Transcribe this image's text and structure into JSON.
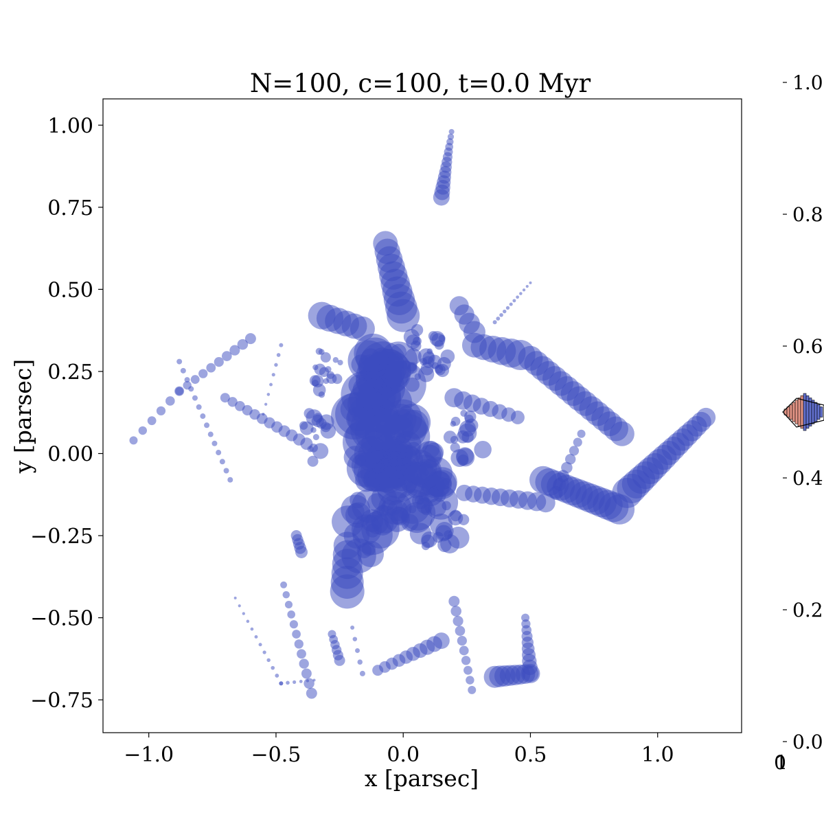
{
  "chart_data": {
    "type": "scatter",
    "title": "N=100, c=100, t=0.0 Myr",
    "xlabel": "x [parsec]",
    "ylabel": "y [parsec]",
    "xlim": [
      -1.18,
      1.33
    ],
    "ylim": [
      -0.85,
      1.08
    ],
    "x_ticks": [
      "−1.0",
      "−0.5",
      "0.0",
      "0.5",
      "1.0"
    ],
    "x_tick_values": [
      -1.0,
      -0.5,
      0.0,
      0.5,
      1.0
    ],
    "y_ticks": [
      "−0.75",
      "−0.50",
      "−0.25",
      "0.00",
      "0.25",
      "0.50",
      "0.75",
      "1.00"
    ],
    "y_tick_values": [
      -0.75,
      -0.5,
      -0.25,
      0.0,
      0.25,
      0.5,
      0.75,
      1.0
    ],
    "grid": false,
    "marker_color": "#3b4cc0",
    "marker_alpha": 0.5,
    "streams": [
      {
        "from": [
          0.19,
          0.98
        ],
        "to": [
          0.15,
          0.78
        ],
        "s0": 4,
        "s1": 12,
        "n": 14
      },
      {
        "from": [
          -0.07,
          0.64
        ],
        "to": [
          0.0,
          0.42
        ],
        "s0": 18,
        "s1": 24,
        "n": 10
      },
      {
        "from": [
          0.5,
          0.52
        ],
        "to": [
          0.36,
          0.4
        ],
        "s0": 2,
        "s1": 3,
        "n": 12
      },
      {
        "from": [
          0.5,
          0.29
        ],
        "to": [
          0.86,
          0.06
        ],
        "s0": 18,
        "s1": 18,
        "n": 16
      },
      {
        "from": [
          1.19,
          0.11
        ],
        "to": [
          0.88,
          -0.12
        ],
        "s0": 14,
        "s1": 22,
        "n": 18
      },
      {
        "from": [
          0.85,
          -0.17
        ],
        "to": [
          0.55,
          -0.08
        ],
        "s0": 22,
        "s1": 20,
        "n": 14
      },
      {
        "from": [
          0.48,
          -0.5
        ],
        "to": [
          0.5,
          -0.67
        ],
        "s0": 6,
        "s1": 12,
        "n": 10
      },
      {
        "from": [
          0.5,
          -0.67
        ],
        "to": [
          0.36,
          -0.68
        ],
        "s0": 14,
        "s1": 16,
        "n": 8
      },
      {
        "from": [
          -0.1,
          -0.66
        ],
        "to": [
          0.15,
          -0.57
        ],
        "s0": 8,
        "s1": 12,
        "n": 10
      },
      {
        "from": [
          -0.22,
          -0.42
        ],
        "to": [
          -0.22,
          -0.28
        ],
        "s0": 25,
        "s1": 20,
        "n": 6
      },
      {
        "from": [
          -0.88,
          0.28
        ],
        "to": [
          -0.68,
          -0.08
        ],
        "s0": 4,
        "s1": 4,
        "n": 14
      },
      {
        "from": [
          -1.06,
          0.04
        ],
        "to": [
          -0.88,
          0.19
        ],
        "s0": 6,
        "s1": 7,
        "n": 6
      },
      {
        "from": [
          -0.88,
          0.19
        ],
        "to": [
          -0.6,
          0.35
        ],
        "s0": 6,
        "s1": 8,
        "n": 10
      },
      {
        "from": [
          -0.7,
          0.17
        ],
        "to": [
          -0.38,
          0.03
        ],
        "s0": 7,
        "s1": 9,
        "n": 12
      },
      {
        "from": [
          -0.48,
          0.33
        ],
        "to": [
          -0.55,
          0.12
        ],
        "s0": 3,
        "s1": 2,
        "n": 8
      },
      {
        "from": [
          -0.66,
          -0.44
        ],
        "to": [
          -0.48,
          -0.7
        ],
        "s0": 2,
        "s1": 3,
        "n": 12
      },
      {
        "from": [
          -0.48,
          -0.7
        ],
        "to": [
          -0.35,
          -0.69
        ],
        "s0": 3,
        "s1": 2,
        "n": 6
      },
      {
        "from": [
          -0.47,
          -0.4
        ],
        "to": [
          -0.36,
          -0.73
        ],
        "s0": 5,
        "s1": 8,
        "n": 12
      },
      {
        "from": [
          -0.42,
          -0.25
        ],
        "to": [
          -0.4,
          -0.3
        ],
        "s0": 8,
        "s1": 9,
        "n": 5
      },
      {
        "from": [
          -0.32,
          0.42
        ],
        "to": [
          -0.16,
          0.38
        ],
        "s0": 20,
        "s1": 18,
        "n": 6
      },
      {
        "from": [
          0.22,
          0.45
        ],
        "to": [
          0.28,
          0.37
        ],
        "s0": 14,
        "s1": 16,
        "n": 4
      },
      {
        "from": [
          0.28,
          0.33
        ],
        "to": [
          0.46,
          0.3
        ],
        "s0": 18,
        "s1": 22,
        "n": 6
      },
      {
        "from": [
          0.24,
          -0.12
        ],
        "to": [
          0.56,
          -0.15
        ],
        "s0": 12,
        "s1": 14,
        "n": 10
      },
      {
        "from": [
          0.2,
          0.17
        ],
        "to": [
          0.45,
          0.11
        ],
        "s0": 14,
        "s1": 10,
        "n": 8
      },
      {
        "from": [
          0.7,
          0.06
        ],
        "to": [
          0.6,
          -0.12
        ],
        "s0": 6,
        "s1": 10,
        "n": 8
      },
      {
        "from": [
          -0.28,
          -0.55
        ],
        "to": [
          -0.25,
          -0.63
        ],
        "s0": 6,
        "s1": 8,
        "n": 6
      },
      {
        "from": [
          0.2,
          -0.45
        ],
        "to": [
          0.27,
          -0.72
        ],
        "s0": 8,
        "s1": 6,
        "n": 10
      },
      {
        "from": [
          -0.2,
          -0.53
        ],
        "to": [
          -0.16,
          -0.67
        ],
        "s0": 3,
        "s1": 4,
        "n": 5
      }
    ],
    "blobs": [
      {
        "center": [
          -0.08,
          0.1
        ],
        "rx": 0.14,
        "ry": 0.22,
        "n": 90,
        "smin": 8,
        "smax": 36
      },
      {
        "center": [
          0.02,
          -0.08
        ],
        "rx": 0.15,
        "ry": 0.14,
        "n": 60,
        "smin": 5,
        "smax": 26
      },
      {
        "center": [
          -0.15,
          -0.22
        ],
        "rx": 0.08,
        "ry": 0.1,
        "n": 20,
        "smin": 10,
        "smax": 30
      },
      {
        "center": [
          0.15,
          -0.2
        ],
        "rx": 0.1,
        "ry": 0.12,
        "n": 25,
        "smin": 4,
        "smax": 18
      },
      {
        "center": [
          0.08,
          0.3
        ],
        "rx": 0.1,
        "ry": 0.08,
        "n": 30,
        "smin": 3,
        "smax": 12
      },
      {
        "center": [
          0.25,
          0.05
        ],
        "rx": 0.08,
        "ry": 0.08,
        "n": 18,
        "smin": 4,
        "smax": 14
      },
      {
        "center": [
          -0.3,
          0.25
        ],
        "rx": 0.06,
        "ry": 0.08,
        "n": 18,
        "smin": 4,
        "smax": 10
      },
      {
        "center": [
          -0.35,
          0.05
        ],
        "rx": 0.07,
        "ry": 0.08,
        "n": 16,
        "smin": 4,
        "smax": 12
      }
    ],
    "colorbar": {
      "ticks": [
        "0.0",
        "0.2",
        "0.4",
        "0.6",
        "0.8",
        "1.0"
      ],
      "tick_values": [
        0.0,
        0.2,
        0.4,
        0.6,
        0.8,
        1.0
      ],
      "bottom_labels": [
        "0",
        "1"
      ],
      "colors": [
        "#3b4cc0",
        "#dd7a68"
      ]
    }
  }
}
